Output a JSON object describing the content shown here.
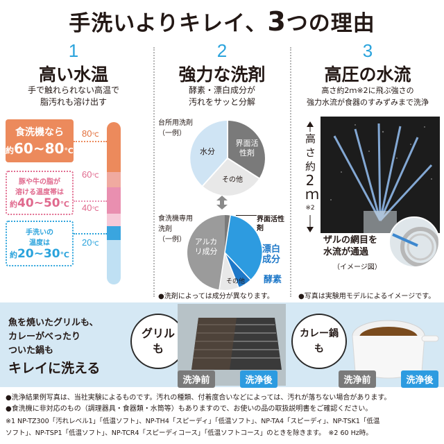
{
  "title": {
    "pre": "手洗いよりキレイ、",
    "num": "3",
    "post": "つの理由"
  },
  "col1": {
    "num": "1",
    "heading": "高い水温",
    "desc1": "手で触れられない高温で",
    "desc2": "脂汚れも溶け出す",
    "box_dish": {
      "l1": "食洗機なら",
      "l2pre": "約",
      "l2": "60~80",
      "unit": "℃",
      "mark": "※1"
    },
    "box_fat": {
      "l1": "豚や牛の脂が",
      "l2": "溶ける温度帯は",
      "l3pre": "約",
      "l3": "40~50",
      "unit": "℃"
    },
    "box_hand": {
      "l1": "手洗いの",
      "l2": "温度は",
      "l3pre": "約",
      "l3": "20~30",
      "unit": "℃"
    },
    "ticks": [
      "80",
      "60",
      "40",
      "20"
    ],
    "tick_unit": "℃"
  },
  "col2": {
    "num": "2",
    "heading": "強力な洗剤",
    "desc1": "酵素・漂白成分が",
    "desc2": "汚れをサッと分解",
    "pie1": {
      "label1": "台所用洗剤",
      "label2": "（一例）",
      "slices": [
        "界面活性剤",
        "水分",
        "その他"
      ],
      "values": [
        40,
        35,
        25
      ]
    },
    "pie2": {
      "label1": "食洗機専用",
      "label2": "洗剤",
      "label3": "（一例）",
      "slices": [
        "アルカリ成分",
        "その他",
        "界面活性剤",
        "漂白成分",
        "酵素"
      ],
      "values": [
        50,
        8,
        2,
        35,
        5
      ]
    },
    "note": "●洗剤によっては成分が異なります。",
    "colors": {
      "surfactant": "#7a7a7a",
      "water": "#cfe4f4",
      "other": "#e8e8e8",
      "alkali": "#9b9b9b",
      "bleach": "#2d9be0",
      "enzyme": "#1e78c8"
    }
  },
  "col3": {
    "num": "3",
    "heading": "高圧の水流",
    "desc1": "高さ約2ｍ※2に飛ぶ強さの",
    "desc2": "強力水流が食器のすみずみまで洗浄",
    "height_label": [
      "高",
      "さ",
      "約",
      "2",
      "ｍ",
      "※2"
    ],
    "zaru1": "ザルの網目を",
    "zaru2": "水流が通過",
    "zaru3": "（イメージ図）",
    "note": "●写真は実験用モデルによるイメージです。"
  },
  "bottom": {
    "text1": "魚を焼いたグリルも、",
    "text2": "カレーがべったり",
    "text3": "ついた鍋も",
    "text4": "キレイに洗える",
    "grill1": "グリル",
    "grill2": "も",
    "curry1": "カレー鍋",
    "curry2": "も",
    "before": "洗浄前",
    "after": "洗浄後"
  },
  "footnotes": [
    "●洗浄結果例写真は、当社実験によるものです。汚れの種類、付着度合いなどによっては、汚れが落ちない場合があります。",
    "●食洗機に非対応のもの（調理器具・食器類・水筒等）もありますので、お使いの品の取扱説明書をご確認ください。",
    "※1 NP-TZ300「汚れレベル1」「低温ソフト」、NP-TH4「スピーディ」「低温ソフト」、NP-TA4「スピーディ」、NP-TSK1「低温",
    "ソフト」、NP-TSP1「低温ソフト」、NP-TCR4「スピーディコース」「低温ソフトコース」のときを除きます。　※2 60 Hz時。"
  ]
}
